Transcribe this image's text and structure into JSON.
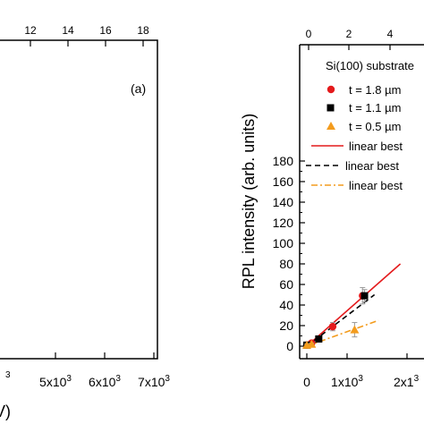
{
  "colors": {
    "axis": "#000000",
    "red_series": "#e41a1c",
    "black_series": "#000000",
    "orange_series": "#f39c1e",
    "error_bar": "#9a9a9a"
  },
  "chart_data": [
    {
      "type": "scatter",
      "panel_label": "(a)",
      "x_top_ticks": [
        "12",
        "14",
        "16",
        "18"
      ],
      "x_bottom_ticks": [
        "5x10",
        "6x10",
        "7x10"
      ],
      "x_bottom_tick_exponent": "3",
      "x_bottom_cut_labels": [
        "3"
      ],
      "xlabel_fragment": "V)",
      "series": []
    },
    {
      "type": "scatter",
      "title": "",
      "ylabel": "RPL intensity (arb. units)",
      "ylim": [
        -10,
        180
      ],
      "y_ticks": [
        0,
        20,
        40,
        60,
        80,
        100,
        120,
        140,
        160,
        180
      ],
      "x_bottom_ticks": [
        "0",
        "1x10",
        "2x1"
      ],
      "x_bottom_tick_exponent": "3",
      "x_top_ticks": [
        "0",
        "2",
        "4"
      ],
      "grid": false,
      "legend": {
        "placement": "top-right",
        "header": "Si(100) substrate",
        "entries": [
          {
            "label": "t = 1.8 µm",
            "marker": "circle",
            "color": "#e41a1c"
          },
          {
            "label": "t = 1.1 µm",
            "marker": "square",
            "color": "#000000"
          },
          {
            "label": "t = 0.5 µm",
            "marker": "triangle",
            "color": "#f39c1e"
          },
          {
            "label": "linear best",
            "line": "solid",
            "color": "#e41a1c"
          },
          {
            "label": "linear best",
            "line": "dashed",
            "color": "#000000"
          },
          {
            "label": "linear best",
            "line": "dashdot",
            "color": "#f39c1e"
          }
        ]
      },
      "series": [
        {
          "marker": "circle",
          "color": "#e41a1c",
          "points": [
            {
              "x": 0,
              "y": 1,
              "err": 1
            },
            {
              "x": 120,
              "y": 3,
              "err": 1.5
            },
            {
              "x": 650,
              "y": 19,
              "err": 4
            },
            {
              "x": 1400,
              "y": 49,
              "err": 8
            }
          ]
        },
        {
          "marker": "square",
          "color": "#000000",
          "points": [
            {
              "x": 0,
              "y": 1,
              "err": 1
            },
            {
              "x": 300,
              "y": 7,
              "err": 1.5
            },
            {
              "x": 1450,
              "y": 49,
              "err": 6
            }
          ]
        },
        {
          "marker": "triangle",
          "color": "#f39c1e",
          "points": [
            {
              "x": 0,
              "y": 1,
              "err": 1
            },
            {
              "x": 120,
              "y": 2,
              "err": 1
            },
            {
              "x": 1200,
              "y": 16,
              "err": 7
            }
          ]
        }
      ],
      "fit_lines": [
        {
          "style": "solid",
          "color": "#e41a1c",
          "x": [
            0,
            2350
          ],
          "y": [
            0,
            80
          ]
        },
        {
          "style": "dashed",
          "color": "#000000",
          "x": [
            0,
            1700
          ],
          "y": [
            0,
            50
          ]
        },
        {
          "style": "dashdot",
          "color": "#f39c1e",
          "x": [
            0,
            1800
          ],
          "y": [
            0,
            25
          ]
        }
      ]
    }
  ]
}
